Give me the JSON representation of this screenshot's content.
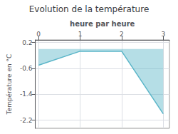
{
  "chart_data": {
    "type": "area",
    "title": "Evolution de la température",
    "xlabel": "heure par heure",
    "ylabel": "Température en °C",
    "x": [
      0,
      1,
      2,
      3
    ],
    "values": [
      -0.5,
      -0.07,
      -0.07,
      -2.0
    ],
    "color": "#5ab5c8",
    "xlim": [
      -0.08,
      3.15
    ],
    "xticks": [
      0,
      1,
      2,
      3
    ],
    "ylim": [
      -2.45,
      0.28
    ],
    "yticks": [
      0.2,
      -0.6,
      -1.4,
      -2.2
    ],
    "grid": true
  }
}
